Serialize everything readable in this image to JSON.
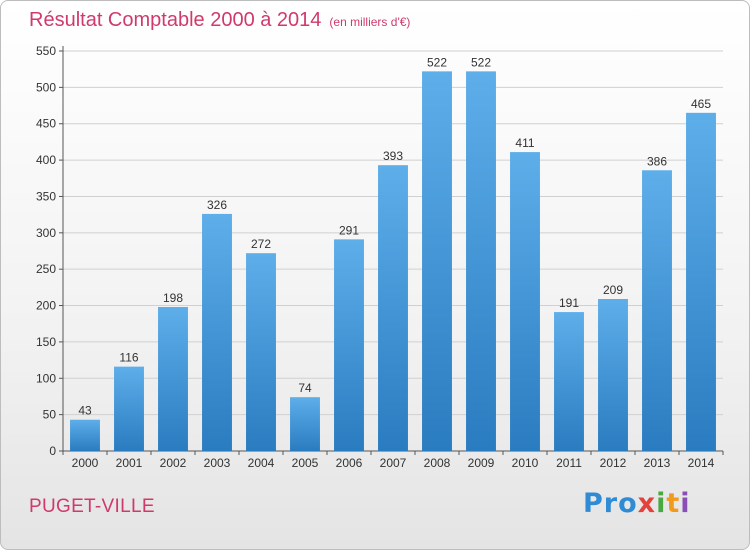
{
  "header": {
    "title": "Résultat Comptable 2000 à 2014",
    "subtitle": "(en milliers d'€)"
  },
  "footer": {
    "commune": "PUGET-VILLE",
    "logo_text": [
      "Pro",
      "x",
      "i",
      "t",
      "i"
    ]
  },
  "colors": {
    "title": "#d03a6a",
    "bar_top": "#5eaeea",
    "bar_bottom": "#2a7cc0",
    "grid": "#d0d0d0"
  },
  "chart_data": {
    "type": "bar",
    "title": "Résultat Comptable 2000 à 2014",
    "subtitle": "(en milliers d'€)",
    "categories": [
      "2000",
      "2001",
      "2002",
      "2003",
      "2004",
      "2005",
      "2006",
      "2007",
      "2008",
      "2009",
      "2010",
      "2011",
      "2012",
      "2013",
      "2014"
    ],
    "values": [
      43,
      116,
      198,
      326,
      272,
      74,
      291,
      393,
      522,
      522,
      411,
      191,
      209,
      386,
      465
    ],
    "ylim": [
      0,
      550
    ],
    "yticks": [
      0,
      50,
      100,
      150,
      200,
      250,
      300,
      350,
      400,
      450,
      500,
      550
    ],
    "grid": true,
    "data_labels": true,
    "legend": "none"
  }
}
